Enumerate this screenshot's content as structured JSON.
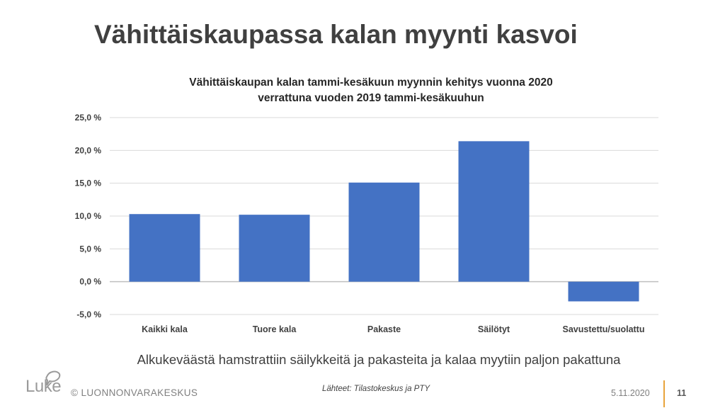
{
  "slide": {
    "title": "Vähittäiskaupassa kalan myynti kasvoi",
    "caption": "Alkukeväästä hamstrattiin säilykkeitä ja pakasteita ja kalaa myytiin paljon pakattuna",
    "footer": {
      "logo_text": "Luke",
      "organization": "© LUONNONVARAKESKUS",
      "source": "Lähteet: Tilastokeskus ja PTY",
      "date": "5.11.2020",
      "page": "11"
    }
  },
  "chart_data": {
    "type": "bar",
    "title_line1": "Vähittäiskaupan kalan tammi-kesäkuun myynnin kehitys vuonna 2020",
    "title_line2": "verrattuna vuoden 2019 tammi-kesäkuuhun",
    "categories": [
      "Kaikki kala",
      "Tuore kala",
      "Pakaste",
      "Säilötyt",
      "Savustettu/suolattu"
    ],
    "values": [
      10.3,
      10.2,
      15.1,
      21.4,
      -3.0
    ],
    "ylim": [
      -5,
      25
    ],
    "yticks": [
      25,
      20,
      15,
      10,
      5,
      0,
      -5
    ],
    "ytick_labels": [
      "25,0 %",
      "20,0 %",
      "15,0 %",
      "10,0 %",
      "5,0 %",
      "0,0 %",
      "-5,0 %"
    ],
    "bar_color": "#4472c4",
    "grid": true,
    "legend": "none"
  }
}
